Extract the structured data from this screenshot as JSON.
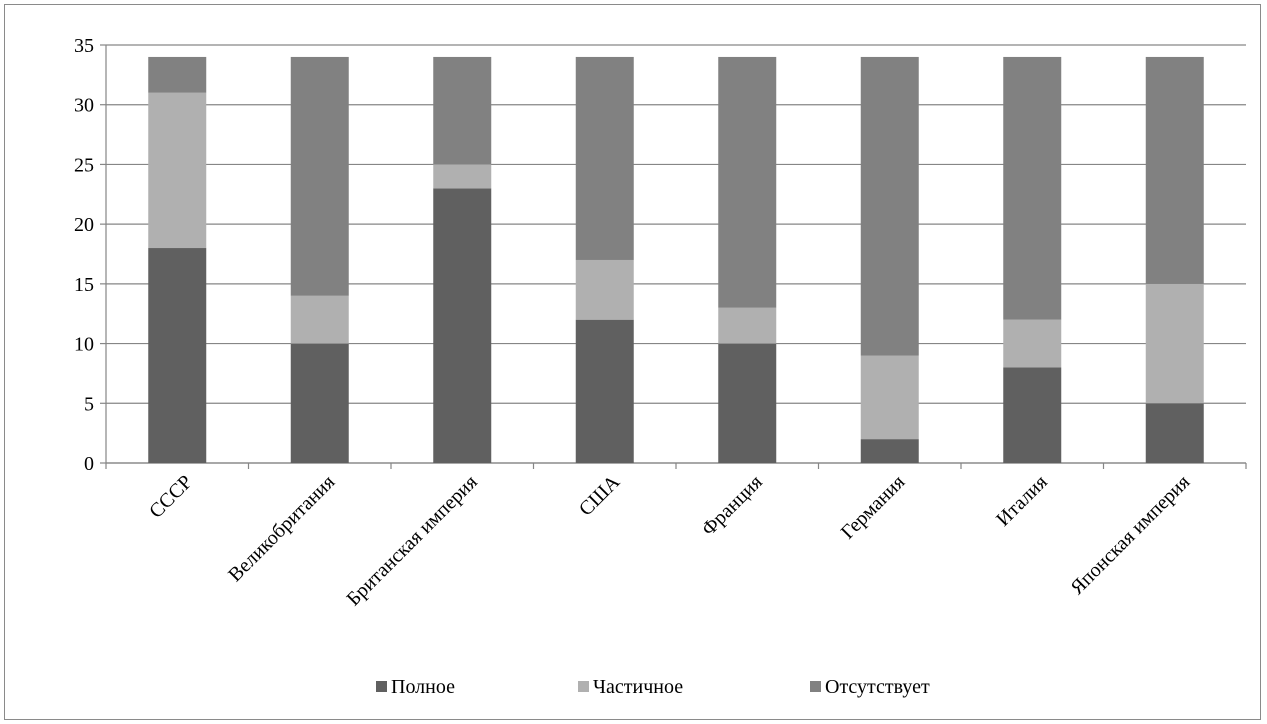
{
  "chart_data": {
    "type": "bar",
    "stacked": true,
    "categories": [
      "СССР",
      "Великобритания",
      "Британская империя",
      "США",
      "Франция",
      "Германия",
      "Италия",
      "Японская империя"
    ],
    "series": [
      {
        "name": "Полное",
        "color": "#606060",
        "values": [
          18,
          10,
          23,
          12,
          10,
          2,
          8,
          5
        ]
      },
      {
        "name": "Частичное",
        "color": "#b0b0b0",
        "values": [
          13,
          4,
          2,
          5,
          3,
          7,
          4,
          10
        ]
      },
      {
        "name": "Отсутствует",
        "color": "#818181",
        "values": [
          3,
          20,
          9,
          17,
          21,
          25,
          22,
          19
        ]
      }
    ],
    "ylim": [
      0,
      35
    ],
    "yticks": [
      0,
      5,
      10,
      15,
      20,
      25,
      30,
      35
    ],
    "grid": true,
    "legend_position": "bottom",
    "title": "",
    "xlabel": "",
    "ylabel": ""
  }
}
